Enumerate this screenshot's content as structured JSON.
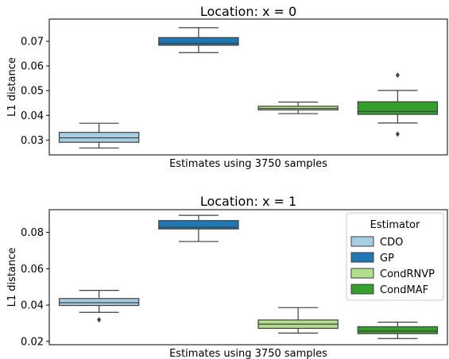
{
  "colors": {
    "CDO": "#a6cee3",
    "GP": "#1f78b4",
    "CondRNVP": "#b2df8a",
    "CondMAF": "#33a02c",
    "edge": "#3f3f3f"
  },
  "chart_data": [
    {
      "type": "box",
      "title": "Location: x = 0",
      "xlabel": "Estimates using 3750 samples",
      "ylabel": "L1 distance",
      "ylim": [
        0.024,
        0.079
      ],
      "yticks": [
        0.03,
        0.04,
        0.05,
        0.06,
        0.07
      ],
      "ytick_labels": [
        "0.03",
        "0.04",
        "0.05",
        "0.06",
        "0.07"
      ],
      "grid": false,
      "legend": null,
      "series": [
        {
          "name": "CDO",
          "whislo": 0.0268,
          "q1": 0.0291,
          "median": 0.0309,
          "q3": 0.0331,
          "whishi": 0.0368,
          "fliers": []
        },
        {
          "name": "GP",
          "whislo": 0.0654,
          "q1": 0.0684,
          "median": 0.0692,
          "q3": 0.0715,
          "whishi": 0.0755,
          "fliers": []
        },
        {
          "name": "CondRNVP",
          "whislo": 0.0407,
          "q1": 0.0422,
          "median": 0.0428,
          "q3": 0.0437,
          "whishi": 0.0454,
          "fliers": []
        },
        {
          "name": "CondMAF",
          "whislo": 0.0369,
          "q1": 0.0404,
          "median": 0.0416,
          "q3": 0.0455,
          "whishi": 0.0501,
          "fliers": [
            0.0324,
            0.0563
          ]
        }
      ]
    },
    {
      "type": "box",
      "title": "Location: x = 1",
      "xlabel": "Estimates using 3750 samples",
      "ylabel": "L1 distance",
      "ylim": [
        0.0182,
        0.0925
      ],
      "yticks": [
        0.02,
        0.04,
        0.06,
        0.08
      ],
      "ytick_labels": [
        "0.02",
        "0.04",
        "0.06",
        "0.08"
      ],
      "grid": false,
      "legend": {
        "title": "Estimator",
        "placement": "upper right",
        "entries": [
          "CDO",
          "GP",
          "CondRNVP",
          "CondMAF"
        ]
      },
      "series": [
        {
          "name": "CDO",
          "whislo": 0.036,
          "q1": 0.0398,
          "median": 0.0413,
          "q3": 0.0436,
          "whishi": 0.0481,
          "fliers": [
            0.0319
          ]
        },
        {
          "name": "GP",
          "whislo": 0.075,
          "q1": 0.0819,
          "median": 0.0828,
          "q3": 0.0865,
          "whishi": 0.0894,
          "fliers": []
        },
        {
          "name": "CondRNVP",
          "whislo": 0.0246,
          "q1": 0.0272,
          "median": 0.0295,
          "q3": 0.0318,
          "whishi": 0.0386,
          "fliers": []
        },
        {
          "name": "CondMAF",
          "whislo": 0.0216,
          "q1": 0.0243,
          "median": 0.0257,
          "q3": 0.0281,
          "whishi": 0.0306,
          "fliers": []
        }
      ]
    }
  ]
}
